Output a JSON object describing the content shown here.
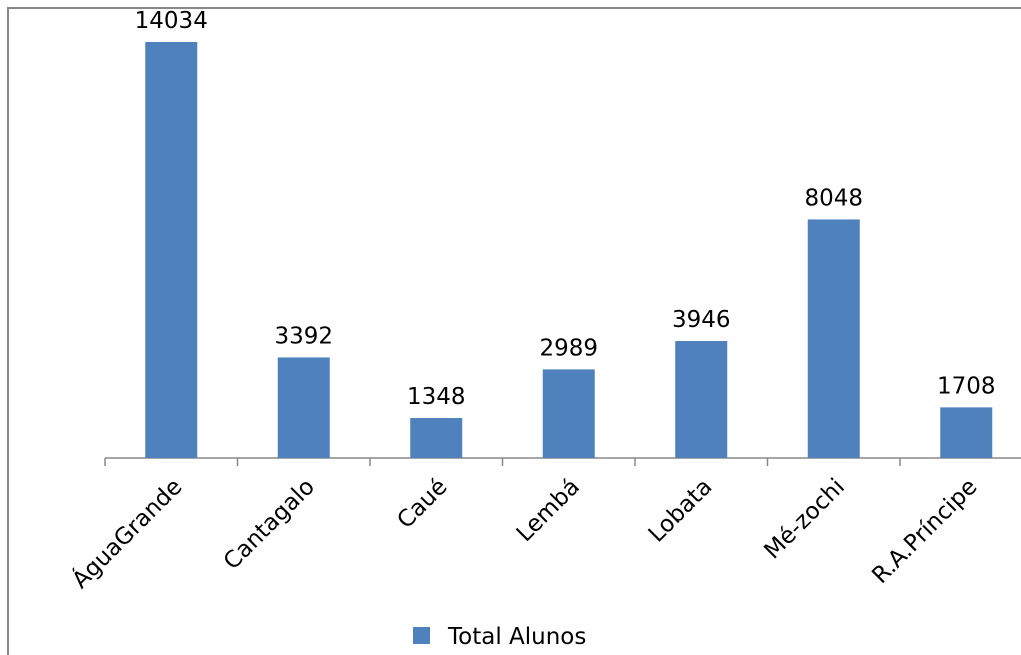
{
  "chart_data": {
    "type": "bar",
    "categories": [
      "ÁguaGrande",
      "Cantagalo",
      "Caué",
      "Lembá",
      "Lobata",
      "Mé-zochi",
      "R.A.Príncipe"
    ],
    "series": [
      {
        "name": "Total Alunos",
        "color": "#4f81bd",
        "values": [
          14034,
          3392,
          1348,
          2989,
          3946,
          8048,
          1708
        ]
      }
    ],
    "legend": "bottom"
  }
}
